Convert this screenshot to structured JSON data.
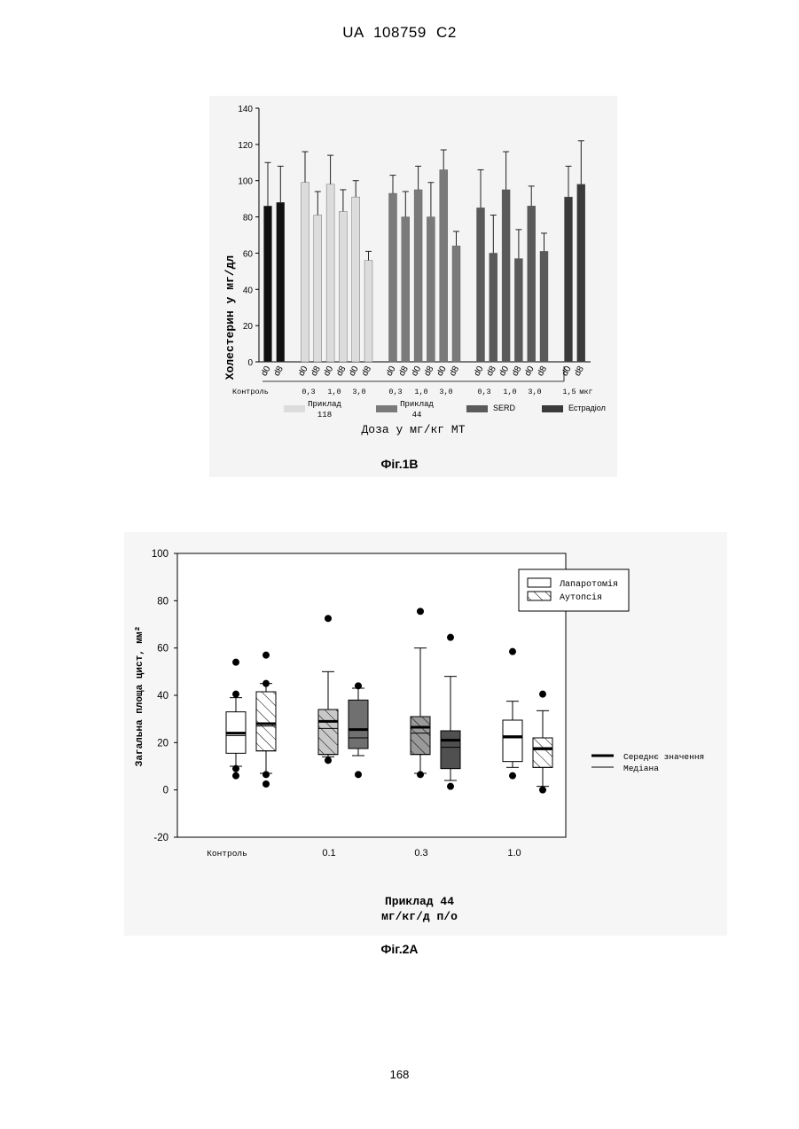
{
  "header": {
    "text": "UA   108759   C2"
  },
  "page_number": "168",
  "chart_data": [
    {
      "type": "bar",
      "caption": "Фіг.1В",
      "ylabel": "Холестерин у мг/дл",
      "xlabel": "Доза у мг/кг МТ",
      "ylim": [
        0,
        140
      ],
      "yticks": [
        0,
        20,
        40,
        60,
        80,
        100,
        120,
        140
      ],
      "groups": [
        {
          "name": "Контроль",
          "color": "#111111",
          "bars": [
            {
              "dose": "",
              "day": "d0",
              "value": 86,
              "err": 110
            },
            {
              "dose": "",
              "day": "d8",
              "value": 88,
              "err": 108
            }
          ]
        },
        {
          "name": "Приклад 118",
          "color": "#dcdcdc",
          "bars": [
            {
              "dose": "0,3",
              "day": "d0",
              "value": 99,
              "err": 116
            },
            {
              "dose": "0,3",
              "day": "d8",
              "value": 81,
              "err": 94
            },
            {
              "dose": "1,0",
              "day": "d0",
              "value": 98,
              "err": 114
            },
            {
              "dose": "1,0",
              "day": "d8",
              "value": 83,
              "err": 95
            },
            {
              "dose": "3,0",
              "day": "d0",
              "value": 91,
              "err": 100
            },
            {
              "dose": "3,0",
              "day": "d8",
              "value": 56,
              "err": 61
            }
          ]
        },
        {
          "name": "Приклад 44",
          "color": "#7a7a7a",
          "bars": [
            {
              "dose": "0,3",
              "day": "d0",
              "value": 93,
              "err": 103
            },
            {
              "dose": "0,3",
              "day": "d8",
              "value": 80,
              "err": 94
            },
            {
              "dose": "1,0",
              "day": "d0",
              "value": 95,
              "err": 108
            },
            {
              "dose": "1,0",
              "day": "d8",
              "value": 80,
              "err": 99
            },
            {
              "dose": "3,0",
              "day": "d0",
              "value": 106,
              "err": 117
            },
            {
              "dose": "3,0",
              "day": "d8",
              "value": 64,
              "err": 72
            }
          ]
        },
        {
          "name": "SERD",
          "color": "#5a5a5a",
          "bars": [
            {
              "dose": "0,3",
              "day": "d0",
              "value": 85,
              "err": 106
            },
            {
              "dose": "0,3",
              "day": "d8",
              "value": 60,
              "err": 81
            },
            {
              "dose": "1,0",
              "day": "d0",
              "value": 95,
              "err": 116
            },
            {
              "dose": "1,0",
              "day": "d8",
              "value": 57,
              "err": 73
            },
            {
              "dose": "3,0",
              "day": "d0",
              "value": 86,
              "err": 97
            },
            {
              "dose": "3,0",
              "day": "d8",
              "value": 61,
              "err": 71
            }
          ]
        },
        {
          "name": "Естрадіол",
          "color": "#3a3a3a",
          "bars": [
            {
              "dose": "1,5",
              "day": "d0",
              "value": 91,
              "err": 108
            },
            {
              "dose": "1,5",
              "day": "d8",
              "value": 98,
              "err": 122
            }
          ]
        }
      ],
      "group_labels": [
        "Контроль",
        "0,3",
        "1,0",
        "3,0",
        "0,3",
        "1,0",
        "3,0",
        "0,3",
        "1,0",
        "3,0",
        "1,5",
        "мкг"
      ],
      "legend": [
        {
          "line1": "Приклад",
          "line2": "118",
          "color": "#dcdcdc"
        },
        {
          "line1": "Приклад",
          "line2": "44",
          "color": "#7a7a7a"
        },
        {
          "line1": "SERD",
          "line2": "",
          "color": "#5a5a5a"
        },
        {
          "line1": "Естрадіол",
          "line2": "",
          "color": "#3a3a3a"
        }
      ]
    },
    {
      "type": "box",
      "caption": "Фіг.2А",
      "ylabel": "Загальна площа цист, мм²",
      "xlabel_line1": "Приклад 44",
      "xlabel_line2": "мг/кг/д п/о",
      "ylim": [
        -20,
        100
      ],
      "yticks": [
        -20,
        0,
        20,
        40,
        60,
        80,
        100
      ],
      "categories": [
        "Контроль",
        "0.1",
        "0.3",
        "1.0"
      ],
      "boxes": [
        {
          "category": "Контроль",
          "kind": "Лапаротомія",
          "fill": "#ffffff",
          "hatch": false,
          "whisker_low": 10,
          "q1": 15.5,
          "median": 23,
          "mean": 24,
          "q3": 33,
          "whisker_high": 39,
          "outliers": [
            54,
            40.5,
            9,
            6
          ]
        },
        {
          "category": "Контроль",
          "kind": "Аутопсія",
          "fill": "#ffffff",
          "hatch": true,
          "whisker_low": 7,
          "q1": 16.5,
          "median": 27,
          "mean": 28,
          "q3": 41.5,
          "whisker_high": 45,
          "outliers": [
            57,
            45,
            6.5,
            2.5
          ]
        },
        {
          "category": "0.1",
          "kind": "Лапаротомія",
          "fill": "#c8c8c8",
          "hatch": true,
          "whisker_low": 14,
          "q1": 15,
          "median": 26,
          "mean": 29,
          "q3": 34,
          "whisker_high": 50,
          "outliers": [
            72.5,
            12.5
          ]
        },
        {
          "category": "0.1",
          "kind": "Аутопсія",
          "fill": "#707070",
          "hatch": false,
          "whisker_low": 14.5,
          "q1": 17.5,
          "median": 22,
          "mean": 25.5,
          "q3": 38,
          "whisker_high": 43,
          "outliers": [
            44,
            6.5
          ]
        },
        {
          "category": "0.3",
          "kind": "Лапаротомія",
          "fill": "#9a9a9a",
          "hatch": true,
          "whisker_low": 7,
          "q1": 15,
          "median": 24,
          "mean": 26.5,
          "q3": 31,
          "whisker_high": 60,
          "outliers": [
            75.5,
            6.5
          ]
        },
        {
          "category": "0.3",
          "kind": "Аутопсія",
          "fill": "#505050",
          "hatch": false,
          "whisker_low": 4,
          "q1": 9,
          "median": 18,
          "mean": 21,
          "q3": 25,
          "whisker_high": 48,
          "outliers": [
            64.5,
            1.5
          ]
        },
        {
          "category": "1.0",
          "kind": "Лапаротомія",
          "fill": "#ffffff",
          "hatch": false,
          "whisker_low": 9.5,
          "q1": 12,
          "median": 22,
          "mean": 22.5,
          "q3": 29.5,
          "whisker_high": 37.5,
          "outliers": [
            58.5,
            6
          ]
        },
        {
          "category": "1.0",
          "kind": "Аутопсія",
          "fill": "#ffffff",
          "hatch": true,
          "whisker_low": 1.5,
          "q1": 9.5,
          "median": 17,
          "mean": 17.5,
          "q3": 22,
          "whisker_high": 33.5,
          "outliers": [
            40.5,
            0
          ]
        }
      ],
      "legend_box": [
        {
          "label": "Лапаротомія",
          "hatch": false
        },
        {
          "label": "Аутопсія",
          "hatch": true
        }
      ],
      "legend_lines": [
        {
          "label": "Середнє значення",
          "style": "thick"
        },
        {
          "label": "Медіана",
          "style": "thin"
        }
      ]
    }
  ]
}
